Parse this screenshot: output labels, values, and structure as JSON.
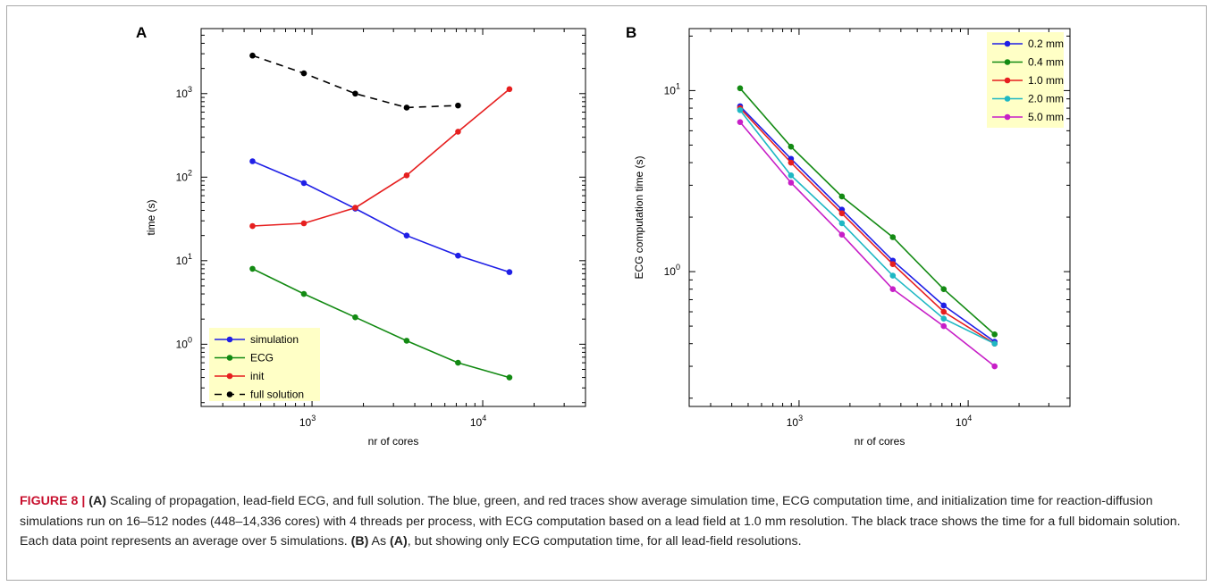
{
  "caption": {
    "figure_label": "FIGURE 8 |",
    "a_ref": "(A)",
    "text1": " Scaling of propagation, lead-field ECG, and full solution. The blue, green, and red traces show average simulation time, ECG computation time, and initialization time for reaction-diffusion simulations run on 16–512 nodes (448–14,336 cores) with 4 threads per process, with ECG computation based on a lead field at 1.0 mm resolution. The black trace shows the time for a full bidomain solution. Each data point represents an average over 5 simulations. ",
    "b_ref": "(B)",
    "text2": " As ",
    "a_ref2": "(A)",
    "text3": ", but showing only ECG computation time, for all lead-field resolutions."
  },
  "colors": {
    "blue": "#1f1fe6",
    "green": "#138a13",
    "red": "#e61f1f",
    "cyan": "#1fb8c4",
    "magenta": "#c71fc7",
    "black": "#000000",
    "legend_bg": "#ffffc6"
  },
  "chart_data": [
    {
      "panel": "A",
      "type": "line",
      "xscale": "log",
      "yscale": "log",
      "xlabel": "nr of cores",
      "ylabel": "time (s)",
      "xlim": [
        224,
        40000
      ],
      "ylim": [
        0.18,
        6000
      ],
      "xtick_labels": [
        {
          "base": "10",
          "exp": "3",
          "value": 1000
        },
        {
          "base": "10",
          "exp": "4",
          "value": 10000
        }
      ],
      "ytick_labels": [
        {
          "base": "10",
          "exp": "0",
          "value": 1
        },
        {
          "base": "10",
          "exp": "1",
          "value": 10
        },
        {
          "base": "10",
          "exp": "2",
          "value": 100
        },
        {
          "base": "10",
          "exp": "3",
          "value": 1000
        }
      ],
      "legend_position": "bottom-left",
      "series": [
        {
          "name": "simulation",
          "color": "#1f1fe6",
          "dashed": false,
          "x": [
            448,
            896,
            1792,
            3584,
            7168,
            14336
          ],
          "y": [
            155,
            85,
            42,
            20,
            11.5,
            7.3
          ]
        },
        {
          "name": "ECG",
          "color": "#138a13",
          "dashed": false,
          "x": [
            448,
            896,
            1792,
            3584,
            7168,
            14336
          ],
          "y": [
            8.0,
            4.0,
            2.1,
            1.1,
            0.6,
            0.4
          ]
        },
        {
          "name": "init",
          "color": "#e61f1f",
          "dashed": false,
          "x": [
            448,
            896,
            1792,
            3584,
            7168,
            14336
          ],
          "y": [
            26,
            28,
            43,
            105,
            350,
            1130
          ]
        },
        {
          "name": "full solution",
          "color": "#000000",
          "dashed": true,
          "x": [
            448,
            896,
            1792,
            3584,
            7168
          ],
          "y": [
            2850,
            1750,
            1000,
            680,
            720
          ]
        }
      ]
    },
    {
      "panel": "B",
      "type": "line",
      "xscale": "log",
      "yscale": "log",
      "xlabel": "nr of cores",
      "ylabel": "ECG computation time (s)",
      "xlim": [
        224,
        40000
      ],
      "ylim": [
        0.18,
        22
      ],
      "xtick_labels": [
        {
          "base": "10",
          "exp": "3",
          "value": 1000
        },
        {
          "base": "10",
          "exp": "4",
          "value": 10000
        }
      ],
      "ytick_labels": [
        {
          "base": "10",
          "exp": "0",
          "value": 1
        },
        {
          "base": "10",
          "exp": "1",
          "value": 10
        }
      ],
      "legend_position": "top-right",
      "series": [
        {
          "name": "0.2 mm",
          "color": "#1f1fe6",
          "dashed": false,
          "x": [
            448,
            896,
            1792,
            3584,
            7168,
            14336
          ],
          "y": [
            8.2,
            4.2,
            2.2,
            1.15,
            0.65,
            0.41
          ]
        },
        {
          "name": "0.4 mm",
          "color": "#138a13",
          "dashed": false,
          "x": [
            448,
            896,
            1792,
            3584,
            7168,
            14336
          ],
          "y": [
            10.3,
            4.9,
            2.6,
            1.55,
            0.8,
            0.45
          ]
        },
        {
          "name": "1.0 mm",
          "color": "#e61f1f",
          "dashed": false,
          "x": [
            448,
            896,
            1792,
            3584,
            7168,
            14336
          ],
          "y": [
            8.0,
            4.0,
            2.1,
            1.1,
            0.6,
            0.4
          ]
        },
        {
          "name": "2.0 mm",
          "color": "#1fb8c4",
          "dashed": false,
          "x": [
            448,
            896,
            1792,
            3584,
            7168,
            14336
          ],
          "y": [
            7.8,
            3.4,
            1.85,
            0.95,
            0.55,
            0.4
          ]
        },
        {
          "name": "5.0 mm",
          "color": "#c71fc7",
          "dashed": false,
          "x": [
            448,
            896,
            1792,
            3584,
            7168,
            14336
          ],
          "y": [
            6.7,
            3.1,
            1.6,
            0.8,
            0.5,
            0.3
          ]
        }
      ]
    }
  ]
}
